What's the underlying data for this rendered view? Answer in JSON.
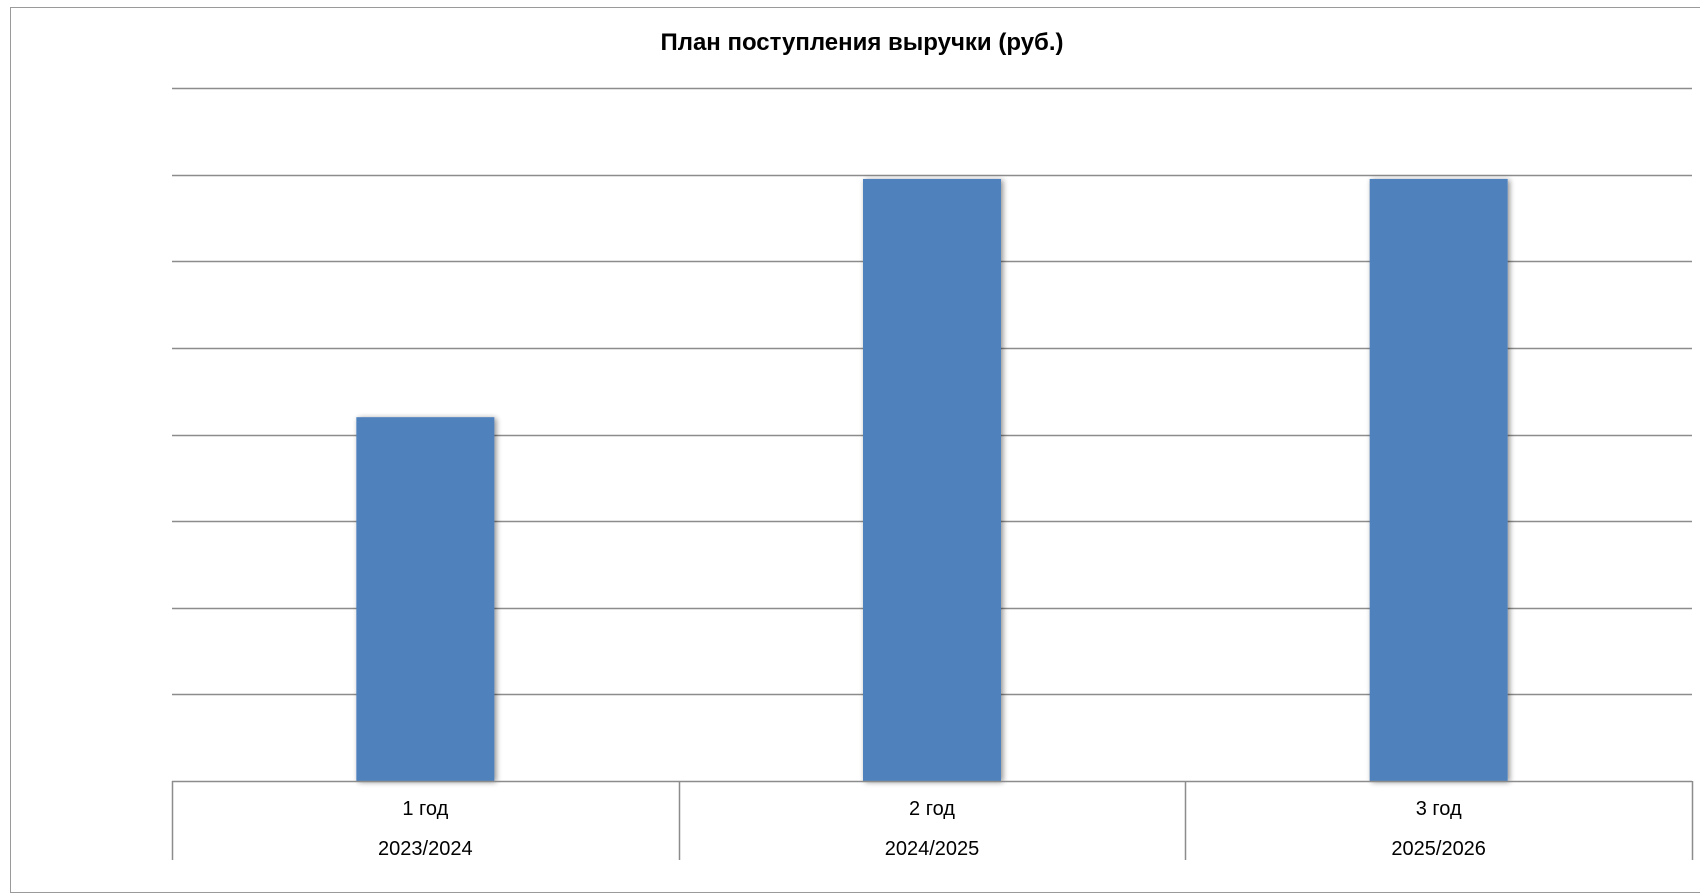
{
  "chart_data": {
    "type": "bar",
    "title": "План поступления выручки (руб.)",
    "xlabel": "",
    "ylabel": "",
    "categories": [
      "1 год",
      "2 год",
      "3 год"
    ],
    "category_groups": [
      "2023/2024",
      "2024/2025",
      "2025/2026"
    ],
    "values": [
      4.2,
      6.95,
      6.95
    ],
    "ylim": [
      0,
      8
    ],
    "y_axis_labels_shown": false,
    "grid": true,
    "legend": "none",
    "colors": {
      "bar": "#4f81bd",
      "grid": "#8c8c8c",
      "axis": "#8c8c8c",
      "frame": "#9a9a9a",
      "background": "#ffffff"
    }
  }
}
